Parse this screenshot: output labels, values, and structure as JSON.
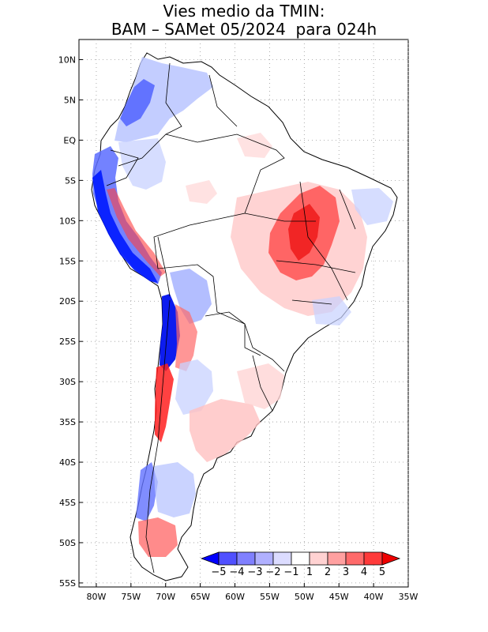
{
  "title": {
    "line1": "Vies medio da TMIN:",
    "line2": "BAM – SAMet 05/2024  para 024h"
  },
  "map": {
    "lat_labels": [
      "10N",
      "5N",
      "EQ",
      "5S",
      "10S",
      "15S",
      "20S",
      "25S",
      "30S",
      "35S",
      "40S",
      "45S",
      "50S",
      "55S"
    ],
    "lon_labels": [
      "80W",
      "75W",
      "70W",
      "65W",
      "60W",
      "55W",
      "50W",
      "45W",
      "40W",
      "35W"
    ],
    "lat_range": [
      -55.5,
      12.5
    ],
    "lon_range": [
      -82.5,
      -35
    ],
    "grid": "dotted"
  },
  "colorbar": {
    "labels": [
      "−5",
      "−4",
      "−3",
      "−2",
      "−1",
      "1",
      "2",
      "3",
      "4",
      "5"
    ],
    "colors": [
      "#0000ff",
      "#5050ff",
      "#8080ff",
      "#b0b0ff",
      "#dcdcff",
      "#ffffff",
      "#ffd2d2",
      "#ffa0a0",
      "#ff6a6a",
      "#ff3a3a",
      "#ee0000"
    ]
  },
  "colors": {
    "strong_blue": "#0000ee",
    "light_blue": "#c8d2ff",
    "strong_red": "#ff2020",
    "light_red": "#ffc8c8"
  }
}
